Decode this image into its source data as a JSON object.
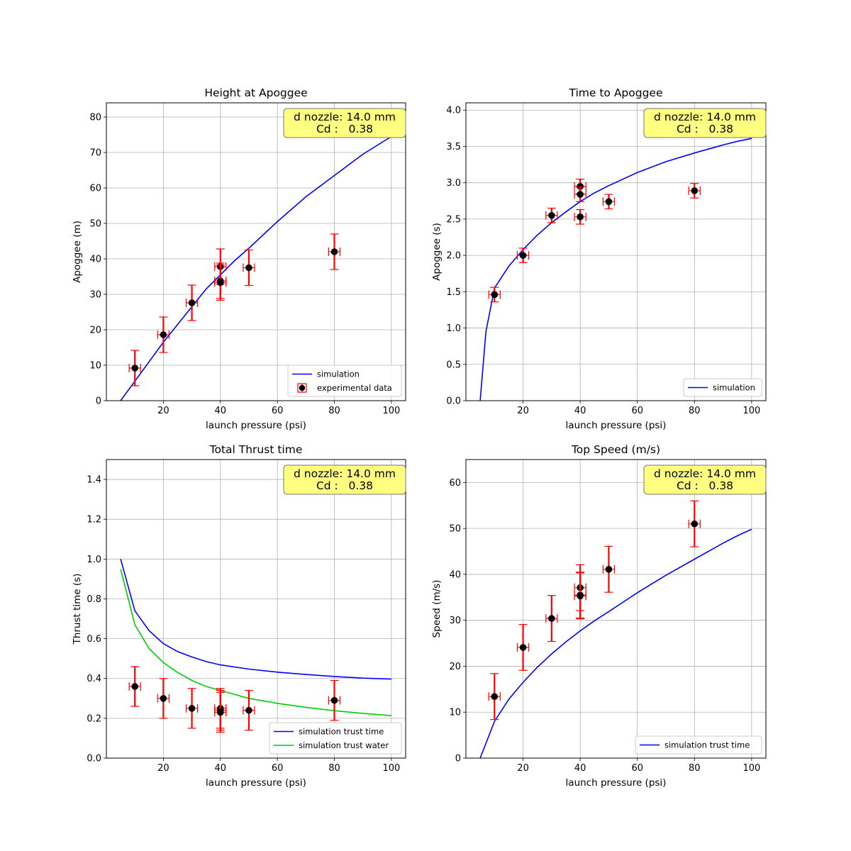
{
  "chart_data": [
    {
      "type": "line",
      "title": "Height at Apoggee",
      "xlabel": "launch pressure (psi)",
      "ylabel": "Apoggee (m)",
      "xlim": [
        0,
        105
      ],
      "ylim": [
        0,
        84
      ],
      "xticks": [
        20,
        40,
        60,
        80,
        100
      ],
      "yticks": [
        0,
        10,
        20,
        30,
        40,
        50,
        60,
        70,
        80
      ],
      "grid": true,
      "annotation": {
        "line1": "d nozzle: 14.0 mm",
        "line2": "Cd :   0.38",
        "background": "#ffff80"
      },
      "legend": {
        "position": "lower right",
        "entries": [
          "simulation",
          "experimental data"
        ]
      },
      "series": [
        {
          "name": "simulation",
          "kind": "line",
          "color": "#0000ff",
          "x": [
            5,
            10,
            15,
            20,
            25,
            30,
            35,
            40,
            45,
            50,
            60,
            70,
            80,
            90,
            95,
            100
          ],
          "y": [
            0,
            5.5,
            11,
            16.5,
            21.5,
            26.5,
            31.5,
            35.5,
            39.5,
            43,
            50.5,
            57.5,
            63.5,
            69.5,
            72,
            74.5
          ]
        },
        {
          "name": "experimental data",
          "kind": "errorbar",
          "color": "#000000",
          "errcolor": "#ff0000",
          "x": [
            10,
            20,
            30,
            40,
            40,
            40,
            50,
            80
          ],
          "y": [
            9.2,
            18.6,
            27.6,
            37.8,
            33.8,
            33.3,
            37.5,
            42
          ],
          "xerr": 2,
          "yerr": 5
        }
      ]
    },
    {
      "type": "line",
      "title": "Time to Apoggee",
      "xlabel": "launch pressure (psi)",
      "ylabel": "Apoggee (s)",
      "xlim": [
        0,
        105
      ],
      "ylim": [
        0,
        4.1
      ],
      "xticks": [
        20,
        40,
        60,
        80,
        100
      ],
      "yticks": [
        "0.0",
        "0.5",
        "1.0",
        "1.5",
        "2.0",
        "2.5",
        "3.0",
        "3.5",
        "4.0"
      ],
      "grid": true,
      "annotation": {
        "line1": "d nozzle: 14.0 mm",
        "line2": "Cd :   0.38",
        "background": "#ffff80"
      },
      "legend": {
        "position": "lower right",
        "entries": [
          "simulation"
        ]
      },
      "series": [
        {
          "name": "simulation",
          "kind": "line",
          "color": "#0000ff",
          "x": [
            5,
            7,
            10,
            15,
            20,
            25,
            30,
            35,
            40,
            45,
            50,
            60,
            70,
            80,
            90,
            95,
            100
          ],
          "y": [
            0,
            0.95,
            1.55,
            1.85,
            2.08,
            2.28,
            2.45,
            2.6,
            2.74,
            2.86,
            2.96,
            3.14,
            3.29,
            3.41,
            3.52,
            3.57,
            3.61
          ]
        },
        {
          "name": "",
          "kind": "errorbar",
          "color": "#000000",
          "errcolor": "#ff0000",
          "x": [
            10,
            20,
            30,
            40,
            40,
            40,
            50,
            80
          ],
          "y": [
            1.46,
            2.0,
            2.55,
            2.95,
            2.84,
            2.53,
            2.74,
            2.89
          ],
          "xerr": 2,
          "yerr": 0.1
        }
      ]
    },
    {
      "type": "line",
      "title": "Total Thrust time",
      "xlabel": "launch pressure (psi)",
      "ylabel": "Thrust time (s)",
      "xlim": [
        0,
        105
      ],
      "ylim": [
        0,
        1.5
      ],
      "xticks": [
        20,
        40,
        60,
        80,
        100
      ],
      "yticks": [
        "0.0",
        "0.2",
        "0.4",
        "0.6",
        "0.8",
        "1.0",
        "1.2",
        "1.4"
      ],
      "grid": true,
      "annotation": {
        "line1": "d nozzle: 14.0 mm",
        "line2": "Cd :   0.38",
        "background": "#ffff80"
      },
      "legend": {
        "position": "lower right",
        "entries": [
          "simulation trust time",
          "simulation trust water"
        ]
      },
      "series": [
        {
          "name": "simulation trust time",
          "kind": "line",
          "color": "#0000ff",
          "x": [
            5,
            10,
            15,
            20,
            25,
            30,
            35,
            40,
            50,
            60,
            70,
            80,
            90,
            100
          ],
          "y": [
            1.0,
            0.74,
            0.64,
            0.575,
            0.535,
            0.508,
            0.485,
            0.468,
            0.447,
            0.432,
            0.42,
            0.41,
            0.402,
            0.397
          ]
        },
        {
          "name": "simulation trust water",
          "kind": "line",
          "color": "#00cc00",
          "x": [
            5,
            10,
            15,
            20,
            25,
            30,
            35,
            40,
            50,
            60,
            70,
            80,
            90,
            100
          ],
          "y": [
            0.95,
            0.67,
            0.55,
            0.48,
            0.43,
            0.39,
            0.36,
            0.34,
            0.3,
            0.275,
            0.255,
            0.238,
            0.225,
            0.213
          ]
        },
        {
          "name": "",
          "kind": "errorbar",
          "color": "#000000",
          "errcolor": "#ff0000",
          "x": [
            10,
            20,
            30,
            40,
            40,
            40,
            50,
            80
          ],
          "y": [
            0.36,
            0.3,
            0.25,
            0.25,
            0.24,
            0.23,
            0.24,
            0.29
          ],
          "xerr": 2,
          "yerr": 0.1
        }
      ]
    },
    {
      "type": "line",
      "title": "Top Speed (m/s)",
      "xlabel": "launch pressure (psi)",
      "ylabel": "Speed (m/s)",
      "xlim": [
        0,
        105
      ],
      "ylim": [
        0,
        65
      ],
      "xticks": [
        20,
        40,
        60,
        80,
        100
      ],
      "yticks": [
        0,
        10,
        20,
        30,
        40,
        50,
        60
      ],
      "grid": true,
      "annotation": {
        "line1": "d nozzle: 14.0 mm",
        "line2": "Cd :   0.38",
        "background": "#ffff80"
      },
      "legend": {
        "position": "lower right",
        "entries": [
          "simulation trust time"
        ]
      },
      "series": [
        {
          "name": "simulation trust time",
          "kind": "line",
          "color": "#0000ff",
          "x": [
            5,
            10,
            15,
            20,
            25,
            30,
            35,
            40,
            45,
            50,
            60,
            70,
            80,
            90,
            95,
            100
          ],
          "y": [
            0,
            8,
            12.8,
            16.5,
            19.8,
            22.7,
            25.3,
            27.7,
            29.9,
            31.9,
            36,
            39.8,
            43.3,
            46.8,
            48.4,
            49.8
          ]
        },
        {
          "name": "",
          "kind": "errorbar",
          "color": "#000000",
          "errcolor": "#ff0000",
          "x": [
            10,
            20,
            30,
            40,
            40,
            40,
            50,
            80
          ],
          "y": [
            13.4,
            24.1,
            30.4,
            37.1,
            35.5,
            35.3,
            41.1,
            51
          ],
          "xerr": 2,
          "yerr": 5
        }
      ]
    }
  ]
}
